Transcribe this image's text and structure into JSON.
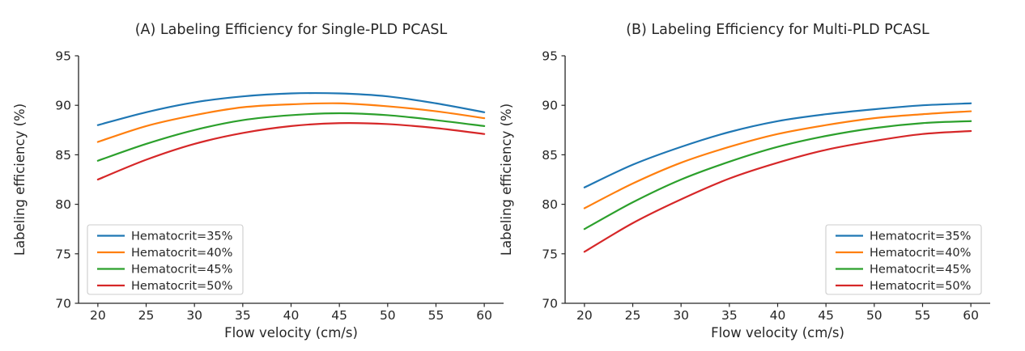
{
  "figure": {
    "background": "#ffffff",
    "text_color": "#262626",
    "axis_color": "#262626",
    "legend_border_color": "#cccccc",
    "legend_fill": "#ffffff"
  },
  "chart_data": [
    {
      "type": "line",
      "panel": "A",
      "title": "(A) Labeling Efficiency for Single-PLD PCASL",
      "xlabel": "Flow velocity (cm/s)",
      "ylabel": "Labeling efficiency (%)",
      "xlim": [
        18,
        62
      ],
      "ylim": [
        70,
        95
      ],
      "xticks": [
        20,
        25,
        30,
        35,
        40,
        45,
        50,
        55,
        60
      ],
      "yticks": [
        70,
        75,
        80,
        85,
        90,
        95
      ],
      "grid": false,
      "legend_position": "lower-left",
      "x": [
        20,
        25,
        30,
        35,
        40,
        45,
        50,
        55,
        60
      ],
      "series": [
        {
          "name": "Hematocrit=35%",
          "color": "#1f77b4",
          "values": [
            88.0,
            89.3,
            90.3,
            90.9,
            91.2,
            91.2,
            90.9,
            90.2,
            89.3
          ]
        },
        {
          "name": "Hematocrit=40%",
          "color": "#ff7f0e",
          "values": [
            86.3,
            87.9,
            89.0,
            89.8,
            90.1,
            90.2,
            89.9,
            89.4,
            88.7
          ]
        },
        {
          "name": "Hematocrit=45%",
          "color": "#2ca02c",
          "values": [
            84.4,
            86.1,
            87.5,
            88.5,
            89.0,
            89.2,
            89.0,
            88.5,
            87.9
          ]
        },
        {
          "name": "Hematocrit=50%",
          "color": "#d62728",
          "values": [
            82.5,
            84.5,
            86.1,
            87.2,
            87.9,
            88.2,
            88.1,
            87.7,
            87.1
          ]
        }
      ]
    },
    {
      "type": "line",
      "panel": "B",
      "title": "(B) Labeling Efficiency for Multi-PLD PCASL",
      "xlabel": "Flow velocity (cm/s)",
      "ylabel": "Labeling efficiency (%)",
      "xlim": [
        18,
        62
      ],
      "ylim": [
        70,
        95
      ],
      "xticks": [
        20,
        25,
        30,
        35,
        40,
        45,
        50,
        55,
        60
      ],
      "yticks": [
        70,
        75,
        80,
        85,
        90,
        95
      ],
      "grid": false,
      "legend_position": "lower-right",
      "x": [
        20,
        25,
        30,
        35,
        40,
        45,
        50,
        55,
        60
      ],
      "series": [
        {
          "name": "Hematocrit=35%",
          "color": "#1f77b4",
          "values": [
            81.7,
            84.0,
            85.8,
            87.3,
            88.4,
            89.1,
            89.6,
            90.0,
            90.2
          ]
        },
        {
          "name": "Hematocrit=40%",
          "color": "#ff7f0e",
          "values": [
            79.6,
            82.1,
            84.2,
            85.8,
            87.1,
            88.0,
            88.7,
            89.1,
            89.4
          ]
        },
        {
          "name": "Hematocrit=45%",
          "color": "#2ca02c",
          "values": [
            77.5,
            80.2,
            82.5,
            84.3,
            85.8,
            86.9,
            87.7,
            88.2,
            88.4
          ]
        },
        {
          "name": "Hematocrit=50%",
          "color": "#d62728",
          "values": [
            75.2,
            78.1,
            80.5,
            82.6,
            84.2,
            85.5,
            86.4,
            87.1,
            87.4
          ]
        }
      ]
    }
  ]
}
